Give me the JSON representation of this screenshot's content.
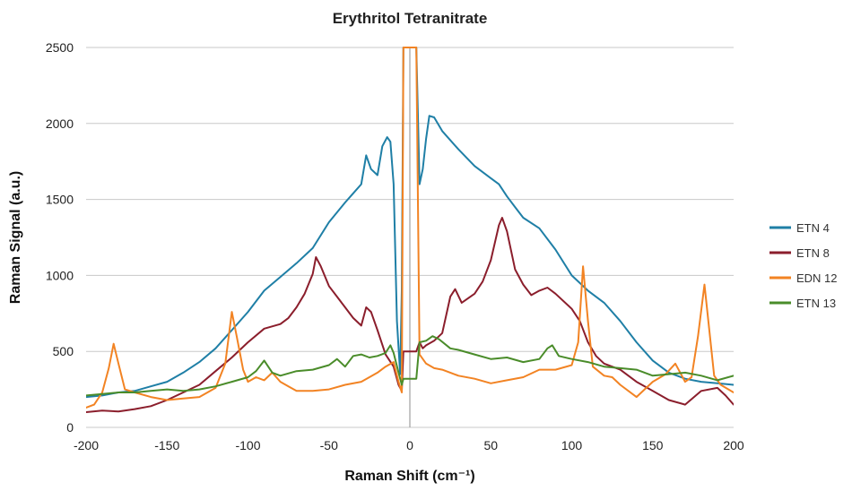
{
  "chart_data": {
    "type": "line",
    "title": "Erythritol Tetranitrate",
    "xlabel": "Raman Shift (cm⁻¹)",
    "ylabel": "Raman Signal (a.u.)",
    "xlim": [
      -200,
      200
    ],
    "ylim": [
      0,
      2500
    ],
    "xticks": [
      -200,
      -150,
      -100,
      -50,
      0,
      50,
      100,
      150,
      200
    ],
    "yticks": [
      0,
      500,
      1000,
      1500,
      2000,
      2500
    ],
    "grid": true,
    "legend_position": "right",
    "series": [
      {
        "name": "ETN 4",
        "color": "#1f7fa6",
        "points": [
          [
            -200,
            200
          ],
          [
            -190,
            210
          ],
          [
            -180,
            230
          ],
          [
            -170,
            240
          ],
          [
            -160,
            270
          ],
          [
            -150,
            300
          ],
          [
            -140,
            360
          ],
          [
            -130,
            430
          ],
          [
            -120,
            520
          ],
          [
            -110,
            640
          ],
          [
            -100,
            760
          ],
          [
            -90,
            900
          ],
          [
            -80,
            990
          ],
          [
            -70,
            1080
          ],
          [
            -60,
            1180
          ],
          [
            -50,
            1350
          ],
          [
            -40,
            1480
          ],
          [
            -35,
            1540
          ],
          [
            -30,
            1600
          ],
          [
            -27,
            1790
          ],
          [
            -24,
            1700
          ],
          [
            -20,
            1660
          ],
          [
            -17,
            1850
          ],
          [
            -14,
            1910
          ],
          [
            -12,
            1880
          ],
          [
            -10,
            1600
          ],
          [
            -8,
            700
          ],
          [
            -6,
            350
          ],
          [
            -5,
            900
          ],
          [
            -4,
            2500
          ],
          [
            4,
            2500
          ],
          [
            6,
            1600
          ],
          [
            8,
            1700
          ],
          [
            10,
            1900
          ],
          [
            12,
            2050
          ],
          [
            15,
            2040
          ],
          [
            20,
            1950
          ],
          [
            30,
            1830
          ],
          [
            40,
            1720
          ],
          [
            50,
            1640
          ],
          [
            55,
            1600
          ],
          [
            60,
            1520
          ],
          [
            65,
            1450
          ],
          [
            70,
            1380
          ],
          [
            80,
            1310
          ],
          [
            90,
            1170
          ],
          [
            100,
            1000
          ],
          [
            110,
            900
          ],
          [
            120,
            820
          ],
          [
            130,
            700
          ],
          [
            140,
            560
          ],
          [
            150,
            440
          ],
          [
            160,
            360
          ],
          [
            170,
            320
          ],
          [
            180,
            300
          ],
          [
            190,
            290
          ],
          [
            200,
            280
          ]
        ]
      },
      {
        "name": "ETN 8",
        "color": "#8b1e2c",
        "points": [
          [
            -200,
            100
          ],
          [
            -190,
            110
          ],
          [
            -180,
            105
          ],
          [
            -170,
            120
          ],
          [
            -160,
            140
          ],
          [
            -150,
            180
          ],
          [
            -140,
            230
          ],
          [
            -130,
            280
          ],
          [
            -120,
            370
          ],
          [
            -110,
            460
          ],
          [
            -100,
            560
          ],
          [
            -90,
            650
          ],
          [
            -80,
            680
          ],
          [
            -75,
            720
          ],
          [
            -70,
            790
          ],
          [
            -65,
            880
          ],
          [
            -60,
            1010
          ],
          [
            -58,
            1120
          ],
          [
            -55,
            1060
          ],
          [
            -50,
            930
          ],
          [
            -45,
            860
          ],
          [
            -40,
            790
          ],
          [
            -35,
            720
          ],
          [
            -30,
            670
          ],
          [
            -27,
            790
          ],
          [
            -24,
            760
          ],
          [
            -20,
            640
          ],
          [
            -15,
            480
          ],
          [
            -10,
            400
          ],
          [
            -7,
            280
          ],
          [
            -5,
            240
          ],
          [
            -4,
            500
          ],
          [
            4,
            500
          ],
          [
            6,
            560
          ],
          [
            8,
            520
          ],
          [
            10,
            540
          ],
          [
            15,
            570
          ],
          [
            20,
            620
          ],
          [
            25,
            860
          ],
          [
            28,
            910
          ],
          [
            32,
            820
          ],
          [
            40,
            880
          ],
          [
            45,
            960
          ],
          [
            50,
            1100
          ],
          [
            55,
            1330
          ],
          [
            57,
            1380
          ],
          [
            60,
            1290
          ],
          [
            65,
            1040
          ],
          [
            70,
            940
          ],
          [
            75,
            870
          ],
          [
            80,
            900
          ],
          [
            85,
            920
          ],
          [
            90,
            880
          ],
          [
            100,
            780
          ],
          [
            105,
            700
          ],
          [
            110,
            560
          ],
          [
            115,
            470
          ],
          [
            120,
            420
          ],
          [
            130,
            380
          ],
          [
            140,
            300
          ],
          [
            150,
            240
          ],
          [
            160,
            180
          ],
          [
            170,
            150
          ],
          [
            180,
            240
          ],
          [
            190,
            260
          ],
          [
            195,
            210
          ],
          [
            200,
            150
          ]
        ]
      },
      {
        "name": "EDN 12",
        "color": "#f28323",
        "points": [
          [
            -200,
            130
          ],
          [
            -195,
            150
          ],
          [
            -190,
            230
          ],
          [
            -186,
            390
          ],
          [
            -183,
            550
          ],
          [
            -180,
            420
          ],
          [
            -176,
            250
          ],
          [
            -170,
            230
          ],
          [
            -160,
            200
          ],
          [
            -150,
            180
          ],
          [
            -140,
            190
          ],
          [
            -130,
            200
          ],
          [
            -120,
            260
          ],
          [
            -114,
            420
          ],
          [
            -110,
            760
          ],
          [
            -107,
            600
          ],
          [
            -103,
            380
          ],
          [
            -100,
            300
          ],
          [
            -95,
            330
          ],
          [
            -90,
            310
          ],
          [
            -85,
            360
          ],
          [
            -80,
            300
          ],
          [
            -75,
            270
          ],
          [
            -70,
            240
          ],
          [
            -60,
            240
          ],
          [
            -50,
            250
          ],
          [
            -40,
            280
          ],
          [
            -30,
            300
          ],
          [
            -25,
            330
          ],
          [
            -20,
            360
          ],
          [
            -15,
            400
          ],
          [
            -10,
            430
          ],
          [
            -7,
            300
          ],
          [
            -5,
            230
          ],
          [
            -4,
            2500
          ],
          [
            4,
            2500
          ],
          [
            6,
            480
          ],
          [
            10,
            420
          ],
          [
            15,
            390
          ],
          [
            20,
            380
          ],
          [
            25,
            360
          ],
          [
            30,
            340
          ],
          [
            40,
            320
          ],
          [
            50,
            290
          ],
          [
            60,
            310
          ],
          [
            70,
            330
          ],
          [
            80,
            380
          ],
          [
            90,
            380
          ],
          [
            100,
            410
          ],
          [
            104,
            560
          ],
          [
            107,
            1060
          ],
          [
            110,
            700
          ],
          [
            113,
            400
          ],
          [
            120,
            340
          ],
          [
            125,
            330
          ],
          [
            130,
            280
          ],
          [
            140,
            200
          ],
          [
            150,
            300
          ],
          [
            158,
            350
          ],
          [
            164,
            420
          ],
          [
            170,
            300
          ],
          [
            174,
            330
          ],
          [
            178,
            600
          ],
          [
            182,
            940
          ],
          [
            185,
            640
          ],
          [
            188,
            340
          ],
          [
            192,
            280
          ],
          [
            200,
            230
          ]
        ]
      },
      {
        "name": "ETN 13",
        "color": "#4a8c2a",
        "points": [
          [
            -200,
            210
          ],
          [
            -190,
            220
          ],
          [
            -180,
            230
          ],
          [
            -170,
            230
          ],
          [
            -160,
            240
          ],
          [
            -150,
            250
          ],
          [
            -140,
            240
          ],
          [
            -130,
            250
          ],
          [
            -120,
            270
          ],
          [
            -110,
            300
          ],
          [
            -100,
            330
          ],
          [
            -95,
            370
          ],
          [
            -90,
            440
          ],
          [
            -85,
            360
          ],
          [
            -80,
            340
          ],
          [
            -70,
            370
          ],
          [
            -60,
            380
          ],
          [
            -50,
            410
          ],
          [
            -45,
            450
          ],
          [
            -40,
            400
          ],
          [
            -35,
            470
          ],
          [
            -30,
            480
          ],
          [
            -25,
            460
          ],
          [
            -20,
            470
          ],
          [
            -15,
            490
          ],
          [
            -12,
            540
          ],
          [
            -10,
            490
          ],
          [
            -7,
            360
          ],
          [
            -5,
            280
          ],
          [
            -4,
            320
          ],
          [
            4,
            320
          ],
          [
            6,
            560
          ],
          [
            10,
            570
          ],
          [
            14,
            600
          ],
          [
            18,
            580
          ],
          [
            25,
            520
          ],
          [
            30,
            510
          ],
          [
            40,
            480
          ],
          [
            50,
            450
          ],
          [
            60,
            460
          ],
          [
            70,
            430
          ],
          [
            80,
            450
          ],
          [
            85,
            520
          ],
          [
            88,
            540
          ],
          [
            92,
            470
          ],
          [
            100,
            450
          ],
          [
            110,
            430
          ],
          [
            120,
            400
          ],
          [
            130,
            390
          ],
          [
            140,
            380
          ],
          [
            150,
            340
          ],
          [
            160,
            350
          ],
          [
            170,
            360
          ],
          [
            180,
            340
          ],
          [
            190,
            310
          ],
          [
            200,
            340
          ]
        ]
      }
    ]
  }
}
